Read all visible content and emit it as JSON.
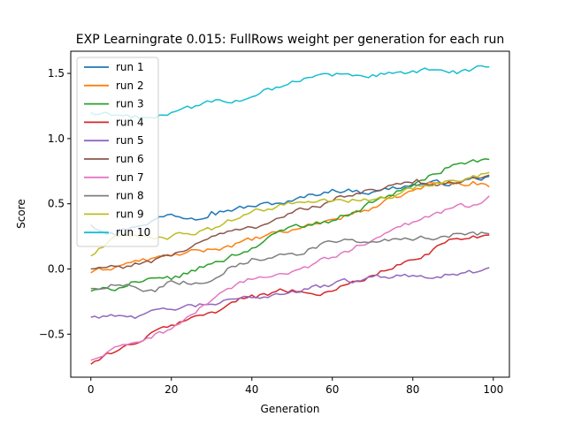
{
  "chart_data": {
    "type": "line",
    "title": "EXP Learningrate 0.015: FullRows weight per generation for each run",
    "xlabel": "Generation",
    "ylabel": "Score",
    "xlim": [
      -5,
      104
    ],
    "ylim": [
      -0.83,
      1.67
    ],
    "xticks": [
      0,
      20,
      40,
      60,
      80,
      100
    ],
    "xtick_labels": [
      "0",
      "20",
      "40",
      "60",
      "80",
      "100"
    ],
    "yticks": [
      -0.5,
      0.0,
      0.5,
      1.0,
      1.5
    ],
    "ytick_labels": [
      "−0.5",
      "0.0",
      "0.5",
      "1.0",
      "1.5"
    ],
    "grid": false,
    "legend_position": "upper-left",
    "x": {
      "start": 0,
      "end": 99,
      "step": 1
    },
    "series": [
      {
        "name": "run 1",
        "color": "#1f77b4",
        "anchors": [
          [
            0,
            0.34
          ],
          [
            5,
            0.28
          ],
          [
            10,
            0.32
          ],
          [
            20,
            0.42
          ],
          [
            25,
            0.39
          ],
          [
            30,
            0.44
          ],
          [
            40,
            0.48
          ],
          [
            50,
            0.52
          ],
          [
            60,
            0.61
          ],
          [
            70,
            0.59
          ],
          [
            80,
            0.65
          ],
          [
            90,
            0.66
          ],
          [
            99,
            0.71
          ]
        ]
      },
      {
        "name": "run 2",
        "color": "#ff7f0e",
        "anchors": [
          [
            0,
            -0.03
          ],
          [
            10,
            0.05
          ],
          [
            20,
            0.1
          ],
          [
            30,
            0.15
          ],
          [
            40,
            0.22
          ],
          [
            50,
            0.3
          ],
          [
            60,
            0.38
          ],
          [
            70,
            0.47
          ],
          [
            80,
            0.6
          ],
          [
            85,
            0.66
          ],
          [
            90,
            0.65
          ],
          [
            95,
            0.67
          ],
          [
            99,
            0.63
          ]
        ]
      },
      {
        "name": "run 3",
        "color": "#2ca02c",
        "anchors": [
          [
            0,
            -0.17
          ],
          [
            5,
            -0.16
          ],
          [
            10,
            -0.1
          ],
          [
            20,
            -0.08
          ],
          [
            30,
            0.04
          ],
          [
            40,
            0.16
          ],
          [
            50,
            0.33
          ],
          [
            60,
            0.37
          ],
          [
            70,
            0.51
          ],
          [
            80,
            0.64
          ],
          [
            90,
            0.8
          ],
          [
            99,
            0.84
          ]
        ]
      },
      {
        "name": "run 4",
        "color": "#d62728",
        "anchors": [
          [
            0,
            -0.73
          ],
          [
            5,
            -0.65
          ],
          [
            10,
            -0.58
          ],
          [
            20,
            -0.43
          ],
          [
            30,
            -0.33
          ],
          [
            40,
            -0.2
          ],
          [
            50,
            -0.16
          ],
          [
            55,
            -0.19
          ],
          [
            60,
            -0.17
          ],
          [
            70,
            -0.05
          ],
          [
            80,
            0.07
          ],
          [
            90,
            0.23
          ],
          [
            99,
            0.26
          ]
        ]
      },
      {
        "name": "run 5",
        "color": "#9467bd",
        "anchors": [
          [
            0,
            -0.37
          ],
          [
            5,
            -0.35
          ],
          [
            12,
            -0.36
          ],
          [
            20,
            -0.31
          ],
          [
            30,
            -0.27
          ],
          [
            40,
            -0.22
          ],
          [
            50,
            -0.17
          ],
          [
            60,
            -0.12
          ],
          [
            70,
            -0.06
          ],
          [
            80,
            -0.05
          ],
          [
            90,
            -0.04
          ],
          [
            95,
            -0.03
          ],
          [
            99,
            0.01
          ]
        ]
      },
      {
        "name": "run 6",
        "color": "#8c564b",
        "anchors": [
          [
            0,
            0.0
          ],
          [
            10,
            0.02
          ],
          [
            20,
            0.1
          ],
          [
            30,
            0.25
          ],
          [
            40,
            0.32
          ],
          [
            50,
            0.43
          ],
          [
            60,
            0.52
          ],
          [
            70,
            0.61
          ],
          [
            80,
            0.66
          ],
          [
            90,
            0.66
          ],
          [
            95,
            0.7
          ],
          [
            99,
            0.72
          ]
        ]
      },
      {
        "name": "run 7",
        "color": "#e377c2",
        "anchors": [
          [
            0,
            -0.7
          ],
          [
            10,
            -0.57
          ],
          [
            20,
            -0.46
          ],
          [
            30,
            -0.24
          ],
          [
            40,
            -0.08
          ],
          [
            50,
            -0.02
          ],
          [
            60,
            0.09
          ],
          [
            70,
            0.22
          ],
          [
            80,
            0.36
          ],
          [
            90,
            0.47
          ],
          [
            95,
            0.49
          ],
          [
            99,
            0.56
          ]
        ]
      },
      {
        "name": "run 8",
        "color": "#7f7f7f",
        "anchors": [
          [
            0,
            -0.15
          ],
          [
            5,
            -0.12
          ],
          [
            10,
            -0.13
          ],
          [
            15,
            -0.16
          ],
          [
            20,
            -0.09
          ],
          [
            28,
            -0.11
          ],
          [
            35,
            0.02
          ],
          [
            40,
            0.08
          ],
          [
            50,
            0.12
          ],
          [
            60,
            0.21
          ],
          [
            70,
            0.21
          ],
          [
            80,
            0.22
          ],
          [
            90,
            0.27
          ],
          [
            99,
            0.27
          ]
        ]
      },
      {
        "name": "run 9",
        "color": "#bcbd22",
        "anchors": [
          [
            0,
            0.1
          ],
          [
            5,
            0.23
          ],
          [
            10,
            0.25
          ],
          [
            20,
            0.25
          ],
          [
            30,
            0.3
          ],
          [
            40,
            0.44
          ],
          [
            50,
            0.5
          ],
          [
            60,
            0.52
          ],
          [
            70,
            0.53
          ],
          [
            80,
            0.61
          ],
          [
            90,
            0.68
          ],
          [
            99,
            0.74
          ]
        ]
      },
      {
        "name": "run 10",
        "color": "#17becf",
        "anchors": [
          [
            0,
            1.2
          ],
          [
            5,
            1.18
          ],
          [
            10,
            1.16
          ],
          [
            17,
            1.18
          ],
          [
            20,
            1.2
          ],
          [
            30,
            1.28
          ],
          [
            40,
            1.32
          ],
          [
            50,
            1.44
          ],
          [
            55,
            1.47
          ],
          [
            60,
            1.48
          ],
          [
            70,
            1.49
          ],
          [
            80,
            1.52
          ],
          [
            90,
            1.52
          ],
          [
            99,
            1.55
          ]
        ]
      }
    ]
  }
}
